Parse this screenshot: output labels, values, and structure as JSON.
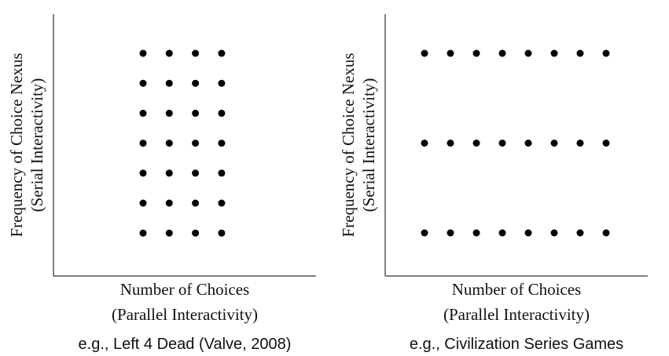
{
  "panels": [
    {
      "y_label": [
        "Frequency of Choice Nexus",
        "(Serial Interactivity)"
      ],
      "x_label": [
        "Number of Choices",
        "(Parallel Interactivity)"
      ],
      "caption": "e.g., Left 4 Dead (Valve, 2008)"
    },
    {
      "y_label": [
        "Frequency of Choice Nexus",
        "(Serial Interactivity)"
      ],
      "x_label": [
        "Number of Choices",
        "(Parallel Interactivity)"
      ],
      "caption": "e.g., Civilization Series Games"
    }
  ]
}
